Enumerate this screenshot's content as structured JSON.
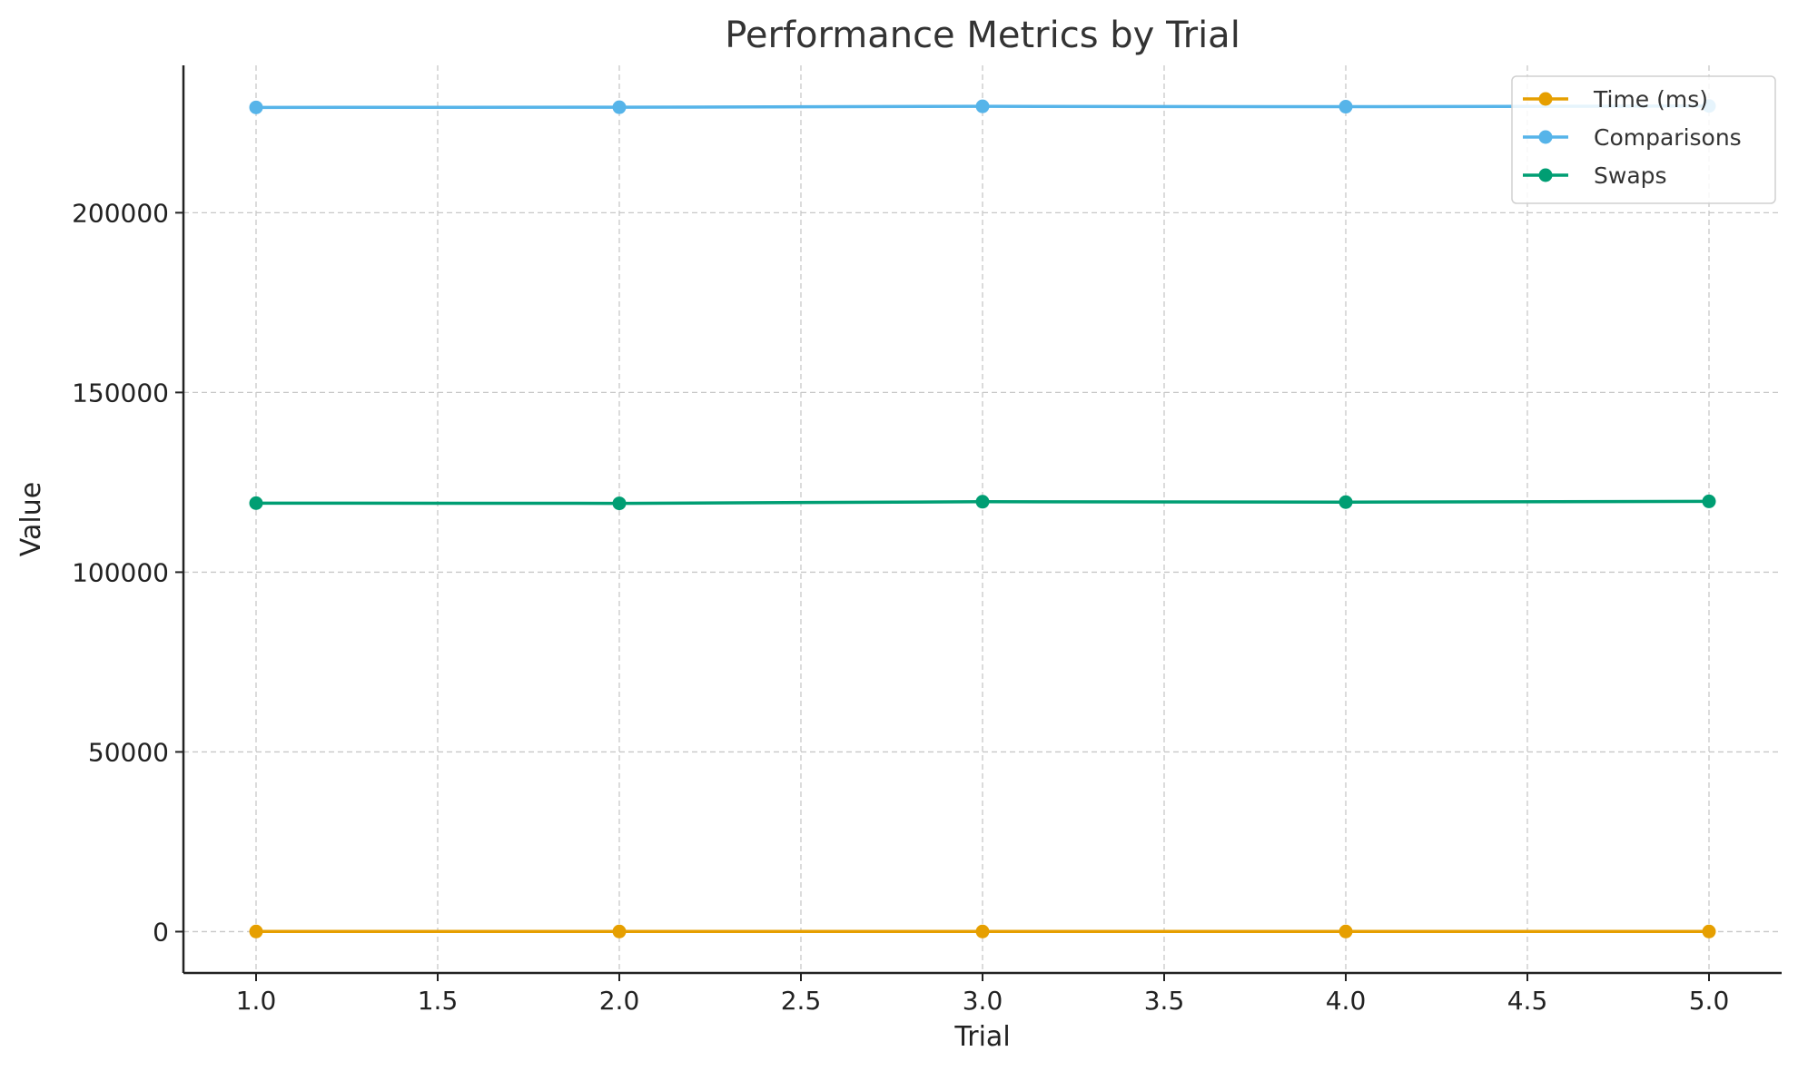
{
  "chart_data": {
    "type": "line",
    "title": "Performance Metrics by Trial",
    "xlabel": "Trial",
    "ylabel": "Value",
    "x": [
      1.0,
      2.0,
      3.0,
      4.0,
      5.0
    ],
    "xlim": [
      0.8,
      5.2
    ],
    "ylim": [
      -11500,
      241000
    ],
    "x_ticks": [
      "1.0",
      "1.5",
      "2.0",
      "2.5",
      "3.0",
      "3.5",
      "4.0",
      "4.5",
      "5.0"
    ],
    "y_ticks": [
      "0",
      "50000",
      "100000",
      "150000",
      "200000"
    ],
    "grid": true,
    "legend_position": "top-right",
    "series": [
      {
        "name": "Time (ms)",
        "color": "#E69F00",
        "values": [
          40,
          40,
          41,
          41,
          41
        ]
      },
      {
        "name": "Comparisons",
        "color": "#56B4E9",
        "values": [
          229300,
          229350,
          229600,
          229500,
          229700
        ]
      },
      {
        "name": "Swaps",
        "color": "#009E73",
        "values": [
          119200,
          119150,
          119600,
          119500,
          119700
        ]
      }
    ]
  }
}
